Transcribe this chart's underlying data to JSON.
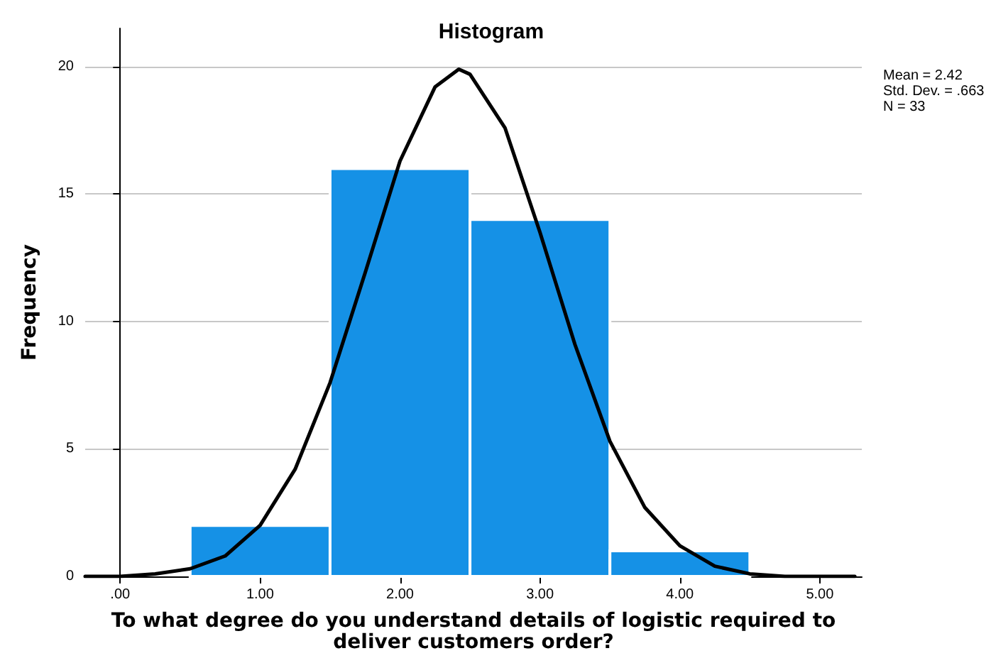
{
  "chart_data": {
    "type": "histogram",
    "title": "Histogram",
    "xlabel": "To what degree do you understand details of logistic required to\ndeliver customers order?",
    "ylabel": "Frequency",
    "annotations": [
      "Mean = 2.42",
      "Std. Dev. = .663",
      "N = 33"
    ],
    "bins": [
      0.5,
      1.5,
      2.5,
      3.5,
      4.5
    ],
    "series": [
      {
        "type": "histogram",
        "color": "#1591e6",
        "values": [
          2,
          16,
          14,
          1
        ]
      },
      {
        "type": "line",
        "color": "#000000",
        "x": [
          -0.25,
          0,
          0.25,
          0.5,
          0.75,
          1,
          1.25,
          1.5,
          1.75,
          2,
          2.25,
          2.42,
          2.5,
          2.75,
          3,
          3.25,
          3.5,
          3.75,
          4,
          4.25,
          4.5,
          4.75,
          5,
          5.25
        ],
        "values": [
          0,
          0,
          0.1,
          0.3,
          0.8,
          2,
          4.2,
          7.6,
          11.9,
          16.3,
          19.2,
          19.9,
          19.7,
          17.6,
          13.5,
          9.1,
          5.3,
          2.7,
          1.2,
          0.4,
          0.1,
          0,
          0,
          0
        ]
      }
    ],
    "xlim": [
      -0.25,
      5.3
    ],
    "xticks": [
      {
        "value": 0,
        "label": ".00"
      },
      {
        "value": 1,
        "label": "1.00"
      },
      {
        "value": 2,
        "label": "2.00"
      },
      {
        "value": 3,
        "label": "3.00"
      },
      {
        "value": 4,
        "label": "4.00"
      },
      {
        "value": 5,
        "label": "5.00"
      }
    ],
    "ylim": [
      0,
      21.5
    ],
    "yticks": [
      0,
      5,
      10,
      15,
      20
    ],
    "grid": "y",
    "marker": "none",
    "line_style": "solid"
  }
}
